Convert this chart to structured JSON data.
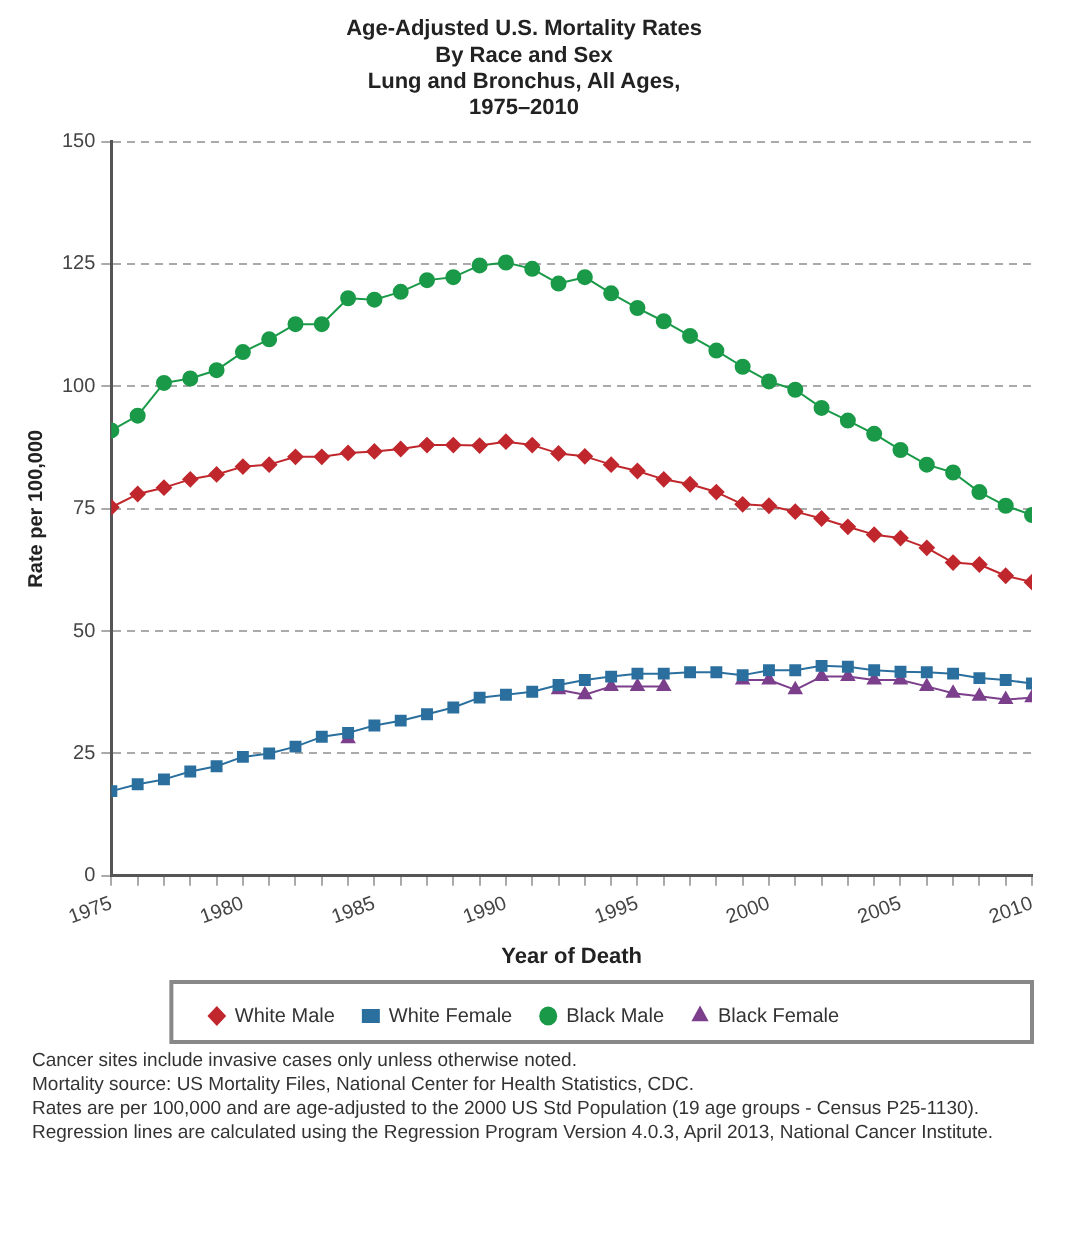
{
  "chart_data": {
    "type": "line",
    "title": "Age-Adjusted U.S. Mortality Rates\nBy Race and Sex",
    "subtitle": "Lung and Bronchus, All Ages,\n1975–2010",
    "xlabel": "Year of Death",
    "ylabel": "Rate per 100,000",
    "x": [
      1975,
      1976,
      1977,
      1978,
      1979,
      1980,
      1981,
      1982,
      1983,
      1984,
      1985,
      1986,
      1987,
      1988,
      1989,
      1990,
      1991,
      1992,
      1993,
      1994,
      1995,
      1996,
      1997,
      1998,
      1999,
      2000,
      2001,
      2002,
      2003,
      2004,
      2005,
      2006,
      2007,
      2008,
      2009,
      2010
    ],
    "series": [
      {
        "name": "White Male",
        "color": "#c0272d",
        "marker": "diamond",
        "values": [
          75.3,
          78,
          79.3,
          81,
          82,
          83.6,
          84,
          85.6,
          85.6,
          86.4,
          86.7,
          87.2,
          88,
          88,
          87.9,
          88.7,
          88,
          86.3,
          85.7,
          84,
          82.7,
          81,
          80,
          78.4,
          75.9,
          75.6,
          74.4,
          73,
          71.3,
          69.7,
          69,
          67,
          64,
          63.6,
          61.3,
          60
        ]
      },
      {
        "name": "White Female",
        "color": "#2a6f9e",
        "marker": "square",
        "values": [
          17.3,
          18.7,
          19.7,
          21.3,
          22.4,
          24.3,
          25,
          26.4,
          28.4,
          29.2,
          30.7,
          31.7,
          33,
          34.4,
          36.4,
          37,
          37.6,
          39,
          40,
          40.7,
          41.3,
          41.3,
          41.6,
          41.6,
          41,
          42,
          42,
          42.9,
          42.7,
          42,
          41.7,
          41.6,
          41.3,
          40.4,
          40,
          39.3
        ]
      },
      {
        "name": "Black Male",
        "color": "#1a9a48",
        "marker": "circle",
        "values": [
          91,
          94,
          100.7,
          101.6,
          103.3,
          107,
          109.6,
          112.7,
          112.7,
          118,
          117.7,
          119.3,
          121.7,
          122.3,
          124.7,
          125.3,
          124,
          121,
          122.3,
          119,
          116,
          113.3,
          110.3,
          107.3,
          104,
          101,
          99.3,
          95.6,
          93,
          90.3,
          87,
          84,
          82.4,
          78.4,
          75.6,
          73.7
        ]
      },
      {
        "name": "Black Female",
        "color": "#7b3f8c",
        "marker": "triangle",
        "values": [
          null,
          null,
          null,
          null,
          null,
          null,
          null,
          null,
          null,
          28,
          null,
          null,
          null,
          null,
          null,
          null,
          null,
          38,
          37,
          38.7,
          38.7,
          38.7,
          null,
          null,
          40,
          40,
          38,
          40.7,
          40.7,
          40,
          40,
          38.7,
          37.3,
          36.7,
          36,
          36.4
        ]
      }
    ],
    "xlim": [
      1975,
      2010
    ],
    "xticks": [
      1975,
      {
        "value": 1976,
        "label": null
      },
      {
        "value": 1977,
        "label": null
      },
      {
        "value": 1978,
        "label": null
      },
      {
        "value": 1979,
        "label": null
      },
      1980,
      {
        "value": 1981,
        "label": null
      },
      {
        "value": 1982,
        "label": null
      },
      {
        "value": 1983,
        "label": null
      },
      {
        "value": 1984,
        "label": null
      },
      1985,
      {
        "value": 1986,
        "label": null
      },
      {
        "value": 1987,
        "label": null
      },
      {
        "value": 1988,
        "label": null
      },
      {
        "value": 1989,
        "label": null
      },
      1990,
      {
        "value": 1991,
        "label": null
      },
      {
        "value": 1992,
        "label": null
      },
      {
        "value": 1993,
        "label": null
      },
      {
        "value": 1994,
        "label": null
      },
      1995,
      {
        "value": 1996,
        "label": null
      },
      {
        "value": 1997,
        "label": null
      },
      {
        "value": 1998,
        "label": null
      },
      {
        "value": 1999,
        "label": null
      },
      2000,
      {
        "value": 2001,
        "label": null
      },
      {
        "value": 2002,
        "label": null
      },
      {
        "value": 2003,
        "label": null
      },
      {
        "value": 2004,
        "label": null
      },
      2005,
      {
        "value": 2006,
        "label": null
      },
      {
        "value": 2007,
        "label": null
      },
      {
        "value": 2008,
        "label": null
      },
      {
        "value": 2009,
        "label": null
      },
      2010
    ],
    "ylim": [
      0,
      150
    ],
    "yticks": [
      0,
      25,
      50,
      75,
      100,
      125,
      150
    ],
    "grid": "y",
    "legend": "bottom",
    "line_style": "solid",
    "annotations": [
      "Cancer sites include invasive cases only unless otherwise noted.",
      "Mortality source: US Mortality Files, National Center for Health Statistics, CDC.",
      "Rates are per 100,000 and are age-adjusted to the 2000 US Std Population (19 age groups - Census P25-1130). Regression lines are calculated using the Regression Program Version 4.0.3, April 2013, National Cancer Institute."
    ]
  }
}
